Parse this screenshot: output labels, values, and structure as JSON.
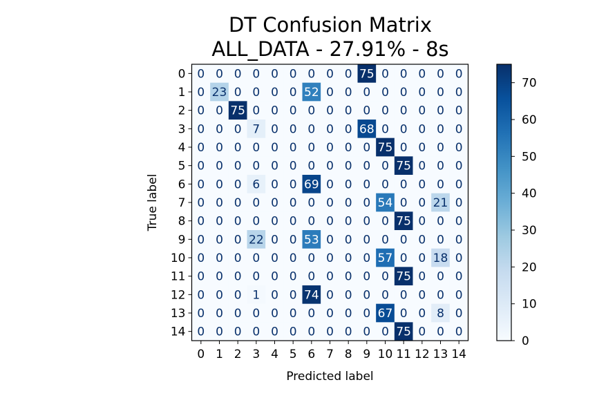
{
  "chart_data": {
    "type": "heatmap",
    "title_line1": "DT Confusion Matrix",
    "title_line2": "ALL_DATA  - 27.91% - 8s",
    "xlabel": "Predicted label",
    "ylabel": "True label",
    "x_ticks": [
      "0",
      "1",
      "2",
      "3",
      "4",
      "5",
      "6",
      "7",
      "8",
      "9",
      "10",
      "11",
      "12",
      "13",
      "14"
    ],
    "y_ticks": [
      "0",
      "1",
      "2",
      "3",
      "4",
      "5",
      "6",
      "7",
      "8",
      "9",
      "10",
      "11",
      "12",
      "13",
      "14"
    ],
    "matrix": [
      [
        0,
        0,
        0,
        0,
        0,
        0,
        0,
        0,
        0,
        75,
        0,
        0,
        0,
        0,
        0
      ],
      [
        0,
        23,
        0,
        0,
        0,
        0,
        52,
        0,
        0,
        0,
        0,
        0,
        0,
        0,
        0
      ],
      [
        0,
        0,
        75,
        0,
        0,
        0,
        0,
        0,
        0,
        0,
        0,
        0,
        0,
        0,
        0
      ],
      [
        0,
        0,
        0,
        7,
        0,
        0,
        0,
        0,
        0,
        68,
        0,
        0,
        0,
        0,
        0
      ],
      [
        0,
        0,
        0,
        0,
        0,
        0,
        0,
        0,
        0,
        0,
        75,
        0,
        0,
        0,
        0
      ],
      [
        0,
        0,
        0,
        0,
        0,
        0,
        0,
        0,
        0,
        0,
        0,
        75,
        0,
        0,
        0
      ],
      [
        0,
        0,
        0,
        6,
        0,
        0,
        69,
        0,
        0,
        0,
        0,
        0,
        0,
        0,
        0
      ],
      [
        0,
        0,
        0,
        0,
        0,
        0,
        0,
        0,
        0,
        0,
        54,
        0,
        0,
        21,
        0
      ],
      [
        0,
        0,
        0,
        0,
        0,
        0,
        0,
        0,
        0,
        0,
        0,
        75,
        0,
        0,
        0
      ],
      [
        0,
        0,
        0,
        22,
        0,
        0,
        53,
        0,
        0,
        0,
        0,
        0,
        0,
        0,
        0
      ],
      [
        0,
        0,
        0,
        0,
        0,
        0,
        0,
        0,
        0,
        0,
        57,
        0,
        0,
        18,
        0
      ],
      [
        0,
        0,
        0,
        0,
        0,
        0,
        0,
        0,
        0,
        0,
        0,
        75,
        0,
        0,
        0
      ],
      [
        0,
        0,
        0,
        1,
        0,
        0,
        74,
        0,
        0,
        0,
        0,
        0,
        0,
        0,
        0
      ],
      [
        0,
        0,
        0,
        0,
        0,
        0,
        0,
        0,
        0,
        0,
        67,
        0,
        0,
        8,
        0
      ],
      [
        0,
        0,
        0,
        0,
        0,
        0,
        0,
        0,
        0,
        0,
        0,
        75,
        0,
        0,
        0
      ]
    ],
    "colormap": "Blues",
    "vmin": 0,
    "vmax": 75,
    "colorbar_ticks": [
      0,
      10,
      20,
      30,
      40,
      50,
      60,
      70
    ]
  }
}
